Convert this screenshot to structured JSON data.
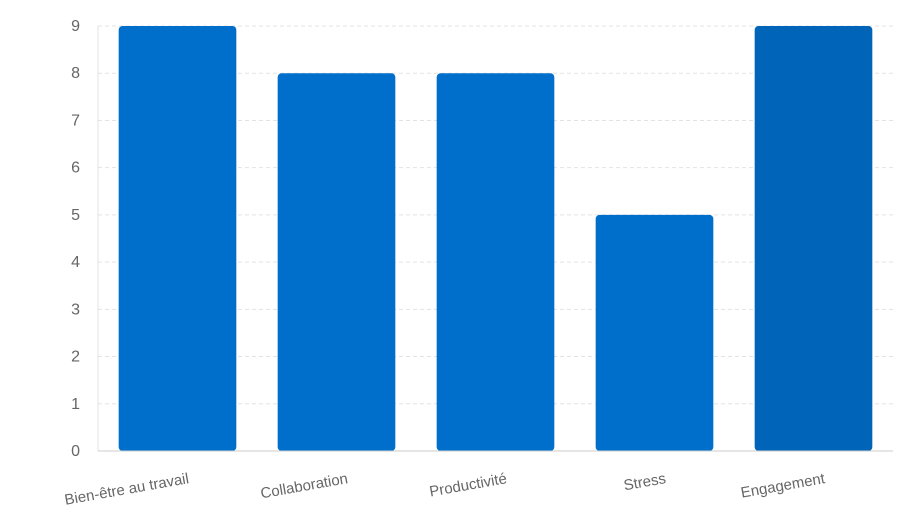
{
  "chart_data": {
    "type": "bar",
    "title": "",
    "xlabel": "",
    "ylabel": "",
    "categories": [
      "Bien-être au travail",
      "Collaboration",
      "Productivité",
      "Stress",
      "Engagement"
    ],
    "values": [
      9,
      8,
      8,
      5,
      9
    ],
    "ylim": [
      0,
      9
    ],
    "yticks": [
      0,
      1,
      2,
      3,
      4,
      5,
      6,
      7,
      8,
      9
    ],
    "grid": true,
    "legend": "none",
    "colors": {
      "bar": "#006fcc",
      "bar_last": "#0064b8",
      "grid": "#e3e3e3",
      "axis": "#cccccc",
      "text": "#666666"
    }
  }
}
